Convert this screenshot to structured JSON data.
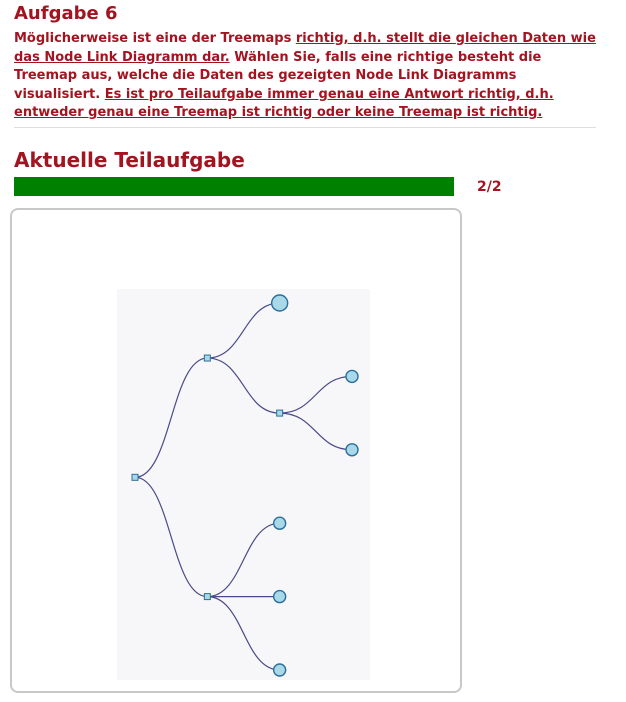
{
  "task": {
    "title": "Aufgabe 6",
    "instructions": [
      {
        "text": "Möglicherweise ist eine der Treemaps ",
        "underline": false
      },
      {
        "text": "richtig, d.h. stellt die gleichen Daten wie das Node Link Diagramm dar.",
        "underline": true
      },
      {
        "text": " Wählen Sie, falls eine richtige besteht die Treemap aus, welche die Daten des gezeigten Node Link Diagramms visualisiert. ",
        "underline": false
      },
      {
        "text": "Es ist pro Teilaufgabe immer genau eine Antwort richtig, d.h. entweder genau eine Treemap ist richtig oder keine Treemap ist richtig.",
        "underline": true
      }
    ]
  },
  "subtask": {
    "heading": "Aktuelle Teilaufgabe",
    "progress_label": "2/2",
    "progress_fraction": 1.0,
    "progress_color": "#008000"
  },
  "diagram": {
    "type": "node-link-tree",
    "link_color": "#4a4a8a",
    "inner_node_fill": "#a9d9e8",
    "leaf_fill": "#a9d9e8",
    "node_stroke": "#2a6f9a",
    "tree": {
      "id": "root",
      "children": [
        {
          "id": "a",
          "children": [
            {
              "id": "a1",
              "leaf_size": "large"
            },
            {
              "id": "a2",
              "children": [
                {
                  "id": "a2-1",
                  "leaf_size": "small"
                },
                {
                  "id": "a2-2",
                  "leaf_size": "small"
                }
              ]
            }
          ]
        },
        {
          "id": "b",
          "children": [
            {
              "id": "b1",
              "leaf_size": "small"
            },
            {
              "id": "b2",
              "leaf_size": "small"
            },
            {
              "id": "b3",
              "leaf_size": "small"
            }
          ]
        }
      ]
    }
  }
}
